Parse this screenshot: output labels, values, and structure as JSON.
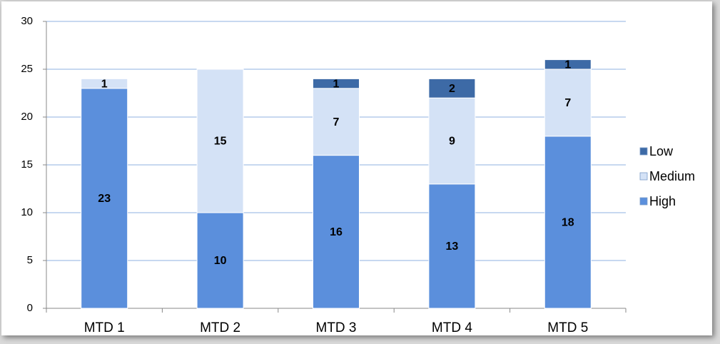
{
  "chart_data": {
    "type": "stacked_bar",
    "categories": [
      "MTD 1",
      "MTD 2",
      "MTD 3",
      "MTD 4",
      "MTD 5"
    ],
    "series": [
      {
        "name": "High",
        "color": "#5b8fdc",
        "values": [
          23,
          10,
          16,
          13,
          18
        ]
      },
      {
        "name": "Medium",
        "color": "#d4e2f6",
        "values": [
          1,
          15,
          7,
          9,
          7
        ]
      },
      {
        "name": "Low",
        "color": "#3d6aa6",
        "values": [
          null,
          null,
          1,
          2,
          1
        ]
      }
    ],
    "ylim": [
      0,
      30
    ],
    "yticks": [
      0,
      5,
      10,
      15,
      20,
      25,
      30
    ],
    "grid": true,
    "legend": "right"
  }
}
